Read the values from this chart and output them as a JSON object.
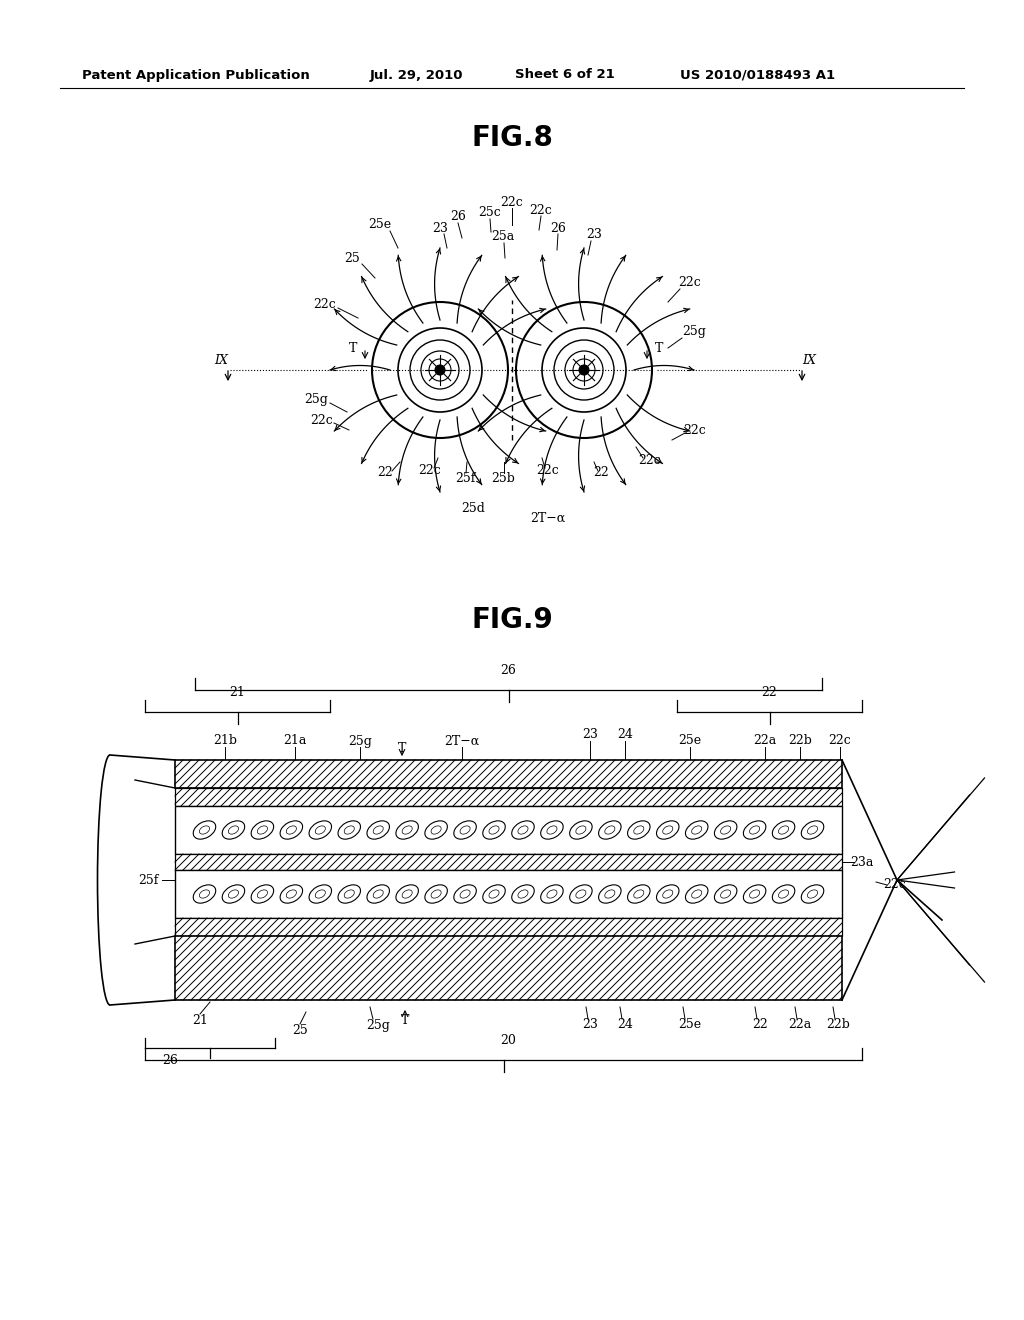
{
  "background_color": "#ffffff",
  "header_text": "Patent Application Publication",
  "header_date": "Jul. 29, 2010",
  "header_sheet": "Sheet 6 of 21",
  "header_patent": "US 2010/0188493 A1",
  "fig8_title": "FIG.8",
  "fig9_title": "FIG.9",
  "text_color": "#000000",
  "line_color": "#000000"
}
